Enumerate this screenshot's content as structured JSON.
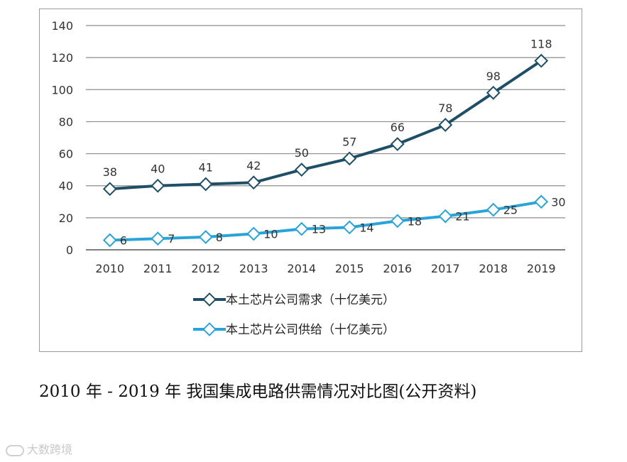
{
  "chart_data": {
    "type": "line",
    "categories": [
      "2010",
      "2011",
      "2012",
      "2013",
      "2014",
      "2015",
      "2016",
      "2017",
      "2018",
      "2019"
    ],
    "ylim": [
      0,
      140
    ],
    "yticks": [
      0,
      20,
      40,
      60,
      80,
      100,
      120,
      140
    ],
    "grid": true,
    "legend_position": "bottom",
    "series": [
      {
        "name": "本土芯片公司需求（十亿美元）",
        "color": "#1e4f66",
        "values": [
          38,
          40,
          41,
          42,
          50,
          57,
          66,
          78,
          98,
          118
        ]
      },
      {
        "name": "本土芯片公司供给（十亿美元）",
        "color": "#2aa4d8",
        "values": [
          6,
          7,
          8,
          10,
          13,
          14,
          18,
          21,
          25,
          30
        ]
      }
    ]
  },
  "legend": {
    "demand": "本土芯片公司需求（十亿美元）",
    "supply": "本土芯片公司供给（十亿美元）"
  },
  "caption": "2010 年 - 2019 年  我国集成电路供需情况对比图(公开资料)",
  "watermark": "大数跨境"
}
